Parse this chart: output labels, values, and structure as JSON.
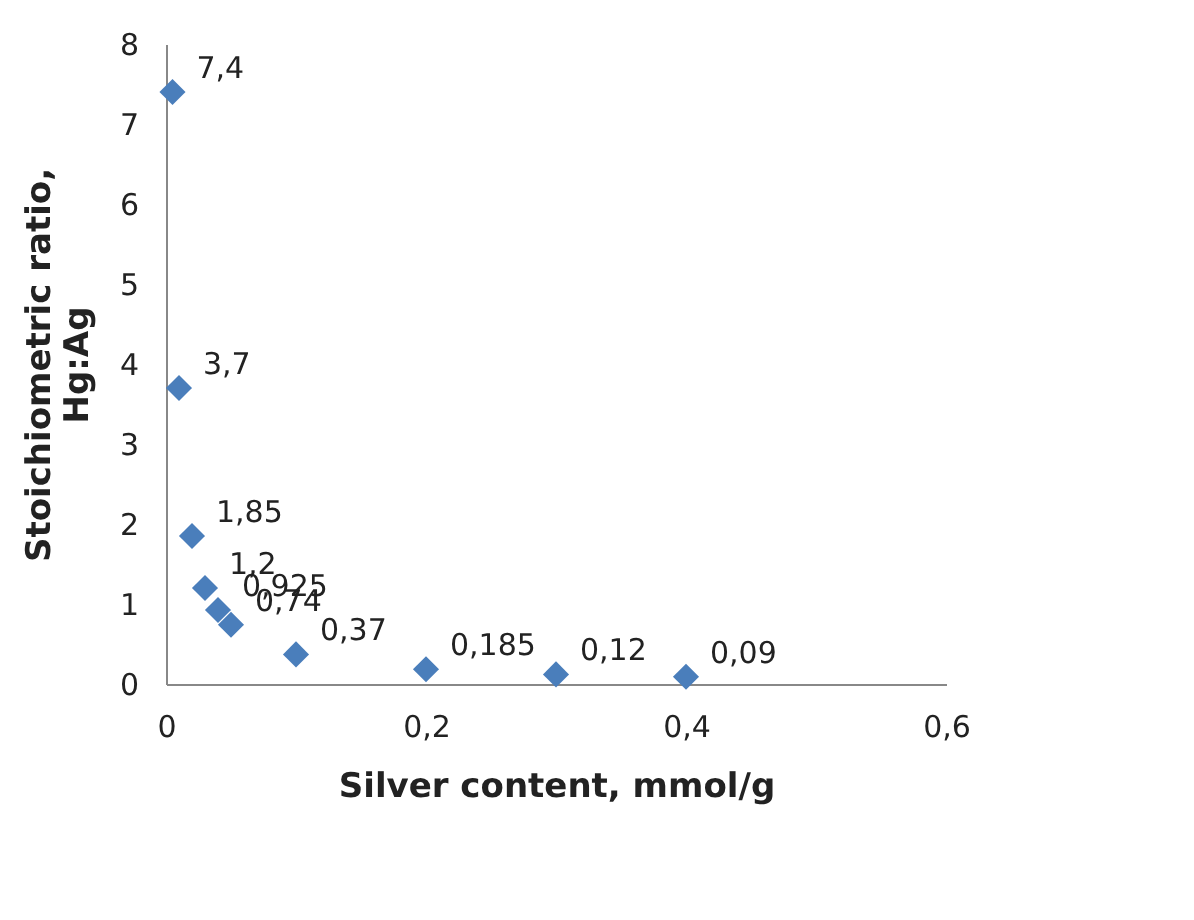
{
  "chart_data": {
    "type": "scatter",
    "xlabel": "Silver content, mmol/g",
    "ylabel": "Stoichiometric ratio, Hg:Ag",
    "x": [
      0.005,
      0.01,
      0.02,
      0.03,
      0.04,
      0.05,
      0.1,
      0.2,
      0.3,
      0.4
    ],
    "series": [
      {
        "color": "#4a7ebb",
        "values": [
          7.4,
          3.7,
          1.85,
          1.2,
          0.925,
          0.74,
          0.37,
          0.185,
          0.12,
          0.09
        ],
        "value_labels": [
          "7,4",
          "3,7",
          "1,85",
          "1,2",
          "0,925",
          "0,74",
          "0,37",
          "0,185",
          "0,12",
          "0,09"
        ]
      }
    ],
    "xlim": [
      0,
      0.6
    ],
    "xticks": [
      0,
      {
        "value": 0.2,
        "label": "0,2"
      },
      {
        "value": 0.4,
        "label": "0,4"
      },
      {
        "value": 0.6,
        "label": "0,6"
      }
    ],
    "ylim": [
      0,
      8
    ],
    "yticks": [
      0,
      1,
      2,
      3,
      4,
      5,
      6,
      7,
      8
    ],
    "grid": false,
    "legend": false,
    "marker": "diamond"
  }
}
